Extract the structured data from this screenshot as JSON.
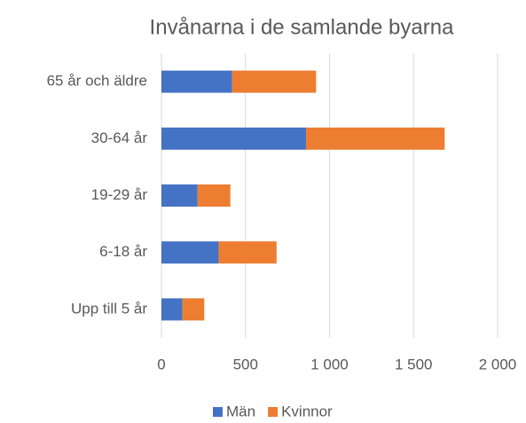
{
  "chart_data": {
    "type": "stacked_barh",
    "title": "Invånarna i de samlande byarna",
    "categories": [
      "65 år och äldre",
      "30-64 år",
      "19-29 år",
      "6-18 år",
      "Upp till 5 år"
    ],
    "series": [
      {
        "name": "Män",
        "color": "#4472c4",
        "values": [
          420,
          860,
          215,
          340,
          125
        ]
      },
      {
        "name": "Kvinnor",
        "color": "#ed7d31",
        "values": [
          500,
          825,
          195,
          345,
          130
        ]
      }
    ],
    "xlim": [
      0,
      2000
    ],
    "xticks": [
      0,
      500,
      {
        "value": 1000,
        "label": "1 000"
      },
      {
        "value": 1500,
        "label": "1 500"
      },
      {
        "value": 2000,
        "label": "2 000"
      }
    ],
    "grid": true,
    "legend": "bottom"
  }
}
